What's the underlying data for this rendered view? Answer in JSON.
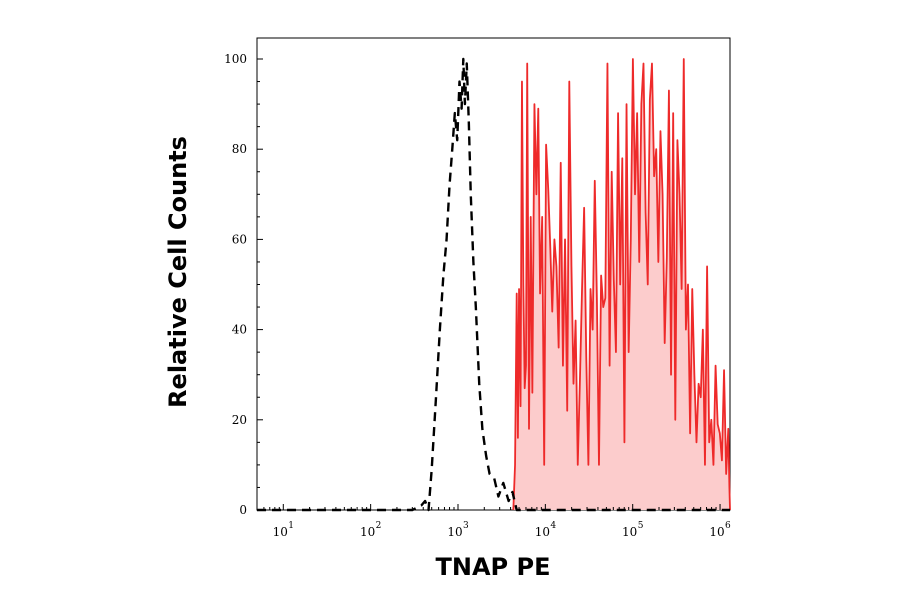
{
  "chart_data": {
    "type": "area",
    "xlabel": "TNAP PE",
    "ylabel": "Relative Cell Counts",
    "x_scale": "log",
    "xlim": [
      5,
      1300000
    ],
    "ylim": [
      0,
      100
    ],
    "x_tick_labels": [
      {
        "value": 10,
        "base": "10",
        "exp": "1"
      },
      {
        "value": 100,
        "base": "10",
        "exp": "2"
      },
      {
        "value": 1000,
        "base": "10",
        "exp": "3"
      },
      {
        "value": 10000,
        "base": "10",
        "exp": "4"
      },
      {
        "value": 100000,
        "base": "10",
        "exp": "5"
      },
      {
        "value": 1000000,
        "base": "10",
        "exp": "6"
      }
    ],
    "y_ticks": [
      0,
      20,
      40,
      60,
      80,
      100
    ],
    "y_tick_labels": [
      "0",
      "20",
      "40",
      "60",
      "80",
      "100"
    ],
    "grid": false,
    "series": [
      {
        "style": "dashed",
        "color": "#000000",
        "fill": "none",
        "x": [
          5,
          300,
          380,
          420,
          460,
          500,
          560,
          620,
          680,
          740,
          800,
          860,
          920,
          980,
          1040,
          1100,
          1150,
          1200,
          1260,
          1330,
          1400,
          1500,
          1600,
          1750,
          1900,
          2100,
          2300,
          2600,
          2900,
          3300,
          3800,
          4200,
          4700,
          1300000
        ],
        "y": [
          0,
          0,
          1,
          2,
          0,
          9,
          25,
          40,
          52,
          60,
          72,
          80,
          88,
          82,
          95,
          89,
          100,
          90,
          99,
          86,
          70,
          55,
          45,
          28,
          18,
          12,
          8,
          7,
          3,
          6,
          2,
          4,
          0,
          0
        ]
      },
      {
        "style": "solid",
        "color": "#ee2a2a",
        "fill": "#fccccc",
        "x": [
          4300,
          4500,
          4700,
          4850,
          5000,
          5200,
          5400,
          5600,
          5800,
          6000,
          6200,
          6500,
          6800,
          7100,
          7500,
          7900,
          8300,
          8700,
          9200,
          9700,
          10200,
          10800,
          11400,
          12000,
          12700,
          13400,
          14200,
          15000,
          15900,
          16800,
          17800,
          18800,
          19900,
          21000,
          22200,
          23500,
          24900,
          26300,
          27800,
          29400,
          31100,
          32900,
          34800,
          36800,
          38900,
          41100,
          43500,
          46000,
          48600,
          51400,
          54400,
          57500,
          60800,
          64300,
          68000,
          71900,
          76000,
          80400,
          85000,
          89900,
          95100,
          100500,
          106300,
          112400,
          118900,
          125700,
          132900,
          140600,
          148700,
          157200,
          166200,
          175800,
          185900,
          196600,
          207900,
          219800,
          232400,
          245800,
          259900,
          274800,
          290600,
          307300,
          325000,
          343700,
          363400,
          384300,
          406400,
          429700,
          454400,
          480600,
          508200,
          537400,
          568300,
          600900,
          635500,
          672000,
          710600,
          751400,
          794600,
          840300,
          888600,
          939700,
          993700,
          1050800,
          1111200,
          1175000,
          1242500,
          1280000,
          1300000
        ],
        "y": [
          0,
          10,
          48,
          16,
          49,
          23,
          95,
          50,
          27,
          32,
          99,
          18,
          65,
          26,
          90,
          70,
          89,
          48,
          65,
          10,
          81,
          71,
          58,
          44,
          60,
          54,
          36,
          77,
          32,
          60,
          22,
          95,
          54,
          28,
          42,
          10,
          29,
          49,
          67,
          34,
          10,
          49,
          40,
          73,
          47,
          10,
          52,
          45,
          47,
          99,
          32,
          75,
          51,
          35,
          88,
          50,
          78,
          15,
          90,
          35,
          60,
          100,
          70,
          88,
          55,
          90,
          99,
          66,
          50,
          91,
          99,
          74,
          80,
          55,
          84,
          70,
          37,
          56,
          93,
          30,
          88,
          20,
          82,
          70,
          49,
          100,
          40,
          50,
          17,
          49,
          30,
          15,
          28,
          25,
          40,
          10,
          54,
          15,
          20,
          10,
          32,
          19,
          17,
          11,
          31,
          8,
          18,
          5,
          0
        ]
      }
    ]
  }
}
